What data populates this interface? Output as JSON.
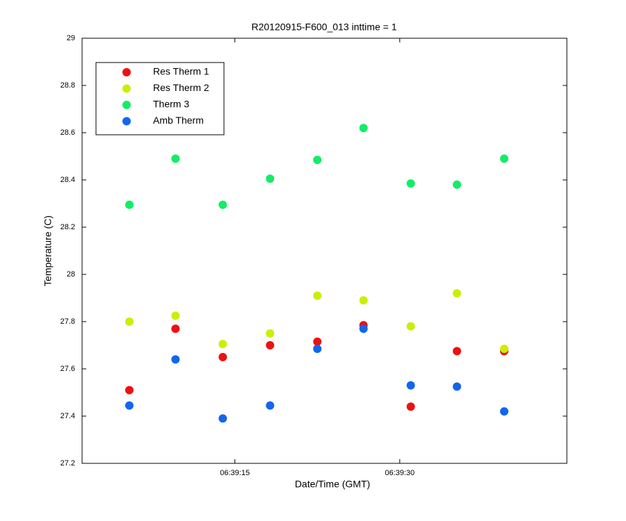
{
  "chart_data": {
    "type": "scatter",
    "title": "R20120915-F600_013 inttime = 1",
    "x_label": "Date/Time (GMT)",
    "y_label": "Temperature (C)",
    "x": [
      5.4,
      9.6,
      13.9,
      18.2,
      22.5,
      26.7,
      31.0,
      35.2,
      39.5
    ],
    "xlim": [
      1.1,
      45.2
    ],
    "xticks": [
      {
        "value": 15,
        "label": "06:39:15"
      },
      {
        "value": 30,
        "label": "06:39:30"
      }
    ],
    "ylim": [
      27.2,
      29
    ],
    "yticks": [
      27.2,
      27.4,
      27.6,
      27.8,
      28,
      28.2,
      28.4,
      28.6,
      28.8,
      29
    ],
    "legend": "upper left",
    "grid": false,
    "series": [
      {
        "name": "Res Therm 1",
        "color": "#ee1111",
        "values": [
          27.51,
          27.77,
          27.65,
          27.7,
          27.715,
          27.785,
          27.44,
          27.675,
          27.675
        ]
      },
      {
        "name": "Res Therm 2",
        "color": "#ccee00",
        "values": [
          27.8,
          27.825,
          27.705,
          27.75,
          27.91,
          27.89,
          27.78,
          27.92,
          27.685
        ]
      },
      {
        "name": "Therm 3",
        "color": "#11ee66",
        "values": [
          28.295,
          28.49,
          28.295,
          28.405,
          28.485,
          28.62,
          28.385,
          28.38,
          28.49
        ]
      },
      {
        "name": "Amb Therm",
        "color": "#1166ee",
        "values": [
          27.445,
          27.64,
          27.39,
          27.445,
          27.685,
          27.77,
          27.53,
          27.525,
          27.42
        ]
      }
    ]
  }
}
